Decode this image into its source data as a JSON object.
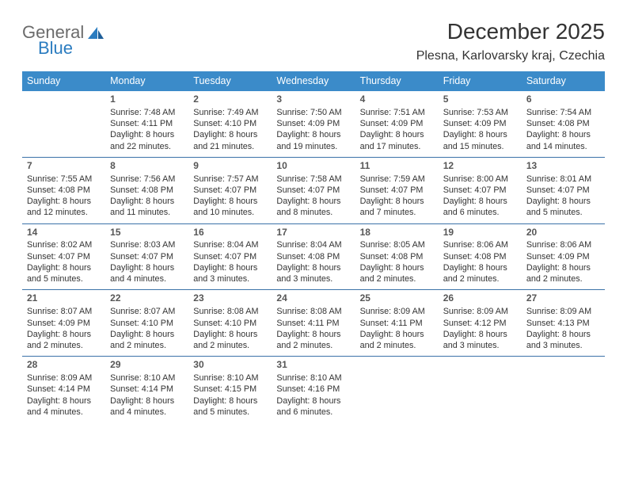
{
  "brand": {
    "word1": "General",
    "word2": "Blue",
    "name_color": "#2b7cc0",
    "icon_color": "#2b7cc0"
  },
  "title": "December 2025",
  "location": "Plesna, Karlovarsky kraj, Czechia",
  "theme": {
    "header_bg": "#3b8bc9",
    "header_text": "#ffffff",
    "divider": "#3b72a8",
    "text": "#333333",
    "background": "#ffffff"
  },
  "day_names": [
    "Sunday",
    "Monday",
    "Tuesday",
    "Wednesday",
    "Thursday",
    "Friday",
    "Saturday"
  ],
  "weeks": [
    [
      {
        "n": "",
        "sr": "",
        "ss": "",
        "dl": ""
      },
      {
        "n": "1",
        "sr": "Sunrise: 7:48 AM",
        "ss": "Sunset: 4:11 PM",
        "dl": "Daylight: 8 hours and 22 minutes."
      },
      {
        "n": "2",
        "sr": "Sunrise: 7:49 AM",
        "ss": "Sunset: 4:10 PM",
        "dl": "Daylight: 8 hours and 21 minutes."
      },
      {
        "n": "3",
        "sr": "Sunrise: 7:50 AM",
        "ss": "Sunset: 4:09 PM",
        "dl": "Daylight: 8 hours and 19 minutes."
      },
      {
        "n": "4",
        "sr": "Sunrise: 7:51 AM",
        "ss": "Sunset: 4:09 PM",
        "dl": "Daylight: 8 hours and 17 minutes."
      },
      {
        "n": "5",
        "sr": "Sunrise: 7:53 AM",
        "ss": "Sunset: 4:09 PM",
        "dl": "Daylight: 8 hours and 15 minutes."
      },
      {
        "n": "6",
        "sr": "Sunrise: 7:54 AM",
        "ss": "Sunset: 4:08 PM",
        "dl": "Daylight: 8 hours and 14 minutes."
      }
    ],
    [
      {
        "n": "7",
        "sr": "Sunrise: 7:55 AM",
        "ss": "Sunset: 4:08 PM",
        "dl": "Daylight: 8 hours and 12 minutes."
      },
      {
        "n": "8",
        "sr": "Sunrise: 7:56 AM",
        "ss": "Sunset: 4:08 PM",
        "dl": "Daylight: 8 hours and 11 minutes."
      },
      {
        "n": "9",
        "sr": "Sunrise: 7:57 AM",
        "ss": "Sunset: 4:07 PM",
        "dl": "Daylight: 8 hours and 10 minutes."
      },
      {
        "n": "10",
        "sr": "Sunrise: 7:58 AM",
        "ss": "Sunset: 4:07 PM",
        "dl": "Daylight: 8 hours and 8 minutes."
      },
      {
        "n": "11",
        "sr": "Sunrise: 7:59 AM",
        "ss": "Sunset: 4:07 PM",
        "dl": "Daylight: 8 hours and 7 minutes."
      },
      {
        "n": "12",
        "sr": "Sunrise: 8:00 AM",
        "ss": "Sunset: 4:07 PM",
        "dl": "Daylight: 8 hours and 6 minutes."
      },
      {
        "n": "13",
        "sr": "Sunrise: 8:01 AM",
        "ss": "Sunset: 4:07 PM",
        "dl": "Daylight: 8 hours and 5 minutes."
      }
    ],
    [
      {
        "n": "14",
        "sr": "Sunrise: 8:02 AM",
        "ss": "Sunset: 4:07 PM",
        "dl": "Daylight: 8 hours and 5 minutes."
      },
      {
        "n": "15",
        "sr": "Sunrise: 8:03 AM",
        "ss": "Sunset: 4:07 PM",
        "dl": "Daylight: 8 hours and 4 minutes."
      },
      {
        "n": "16",
        "sr": "Sunrise: 8:04 AM",
        "ss": "Sunset: 4:07 PM",
        "dl": "Daylight: 8 hours and 3 minutes."
      },
      {
        "n": "17",
        "sr": "Sunrise: 8:04 AM",
        "ss": "Sunset: 4:08 PM",
        "dl": "Daylight: 8 hours and 3 minutes."
      },
      {
        "n": "18",
        "sr": "Sunrise: 8:05 AM",
        "ss": "Sunset: 4:08 PM",
        "dl": "Daylight: 8 hours and 2 minutes."
      },
      {
        "n": "19",
        "sr": "Sunrise: 8:06 AM",
        "ss": "Sunset: 4:08 PM",
        "dl": "Daylight: 8 hours and 2 minutes."
      },
      {
        "n": "20",
        "sr": "Sunrise: 8:06 AM",
        "ss": "Sunset: 4:09 PM",
        "dl": "Daylight: 8 hours and 2 minutes."
      }
    ],
    [
      {
        "n": "21",
        "sr": "Sunrise: 8:07 AM",
        "ss": "Sunset: 4:09 PM",
        "dl": "Daylight: 8 hours and 2 minutes."
      },
      {
        "n": "22",
        "sr": "Sunrise: 8:07 AM",
        "ss": "Sunset: 4:10 PM",
        "dl": "Daylight: 8 hours and 2 minutes."
      },
      {
        "n": "23",
        "sr": "Sunrise: 8:08 AM",
        "ss": "Sunset: 4:10 PM",
        "dl": "Daylight: 8 hours and 2 minutes."
      },
      {
        "n": "24",
        "sr": "Sunrise: 8:08 AM",
        "ss": "Sunset: 4:11 PM",
        "dl": "Daylight: 8 hours and 2 minutes."
      },
      {
        "n": "25",
        "sr": "Sunrise: 8:09 AM",
        "ss": "Sunset: 4:11 PM",
        "dl": "Daylight: 8 hours and 2 minutes."
      },
      {
        "n": "26",
        "sr": "Sunrise: 8:09 AM",
        "ss": "Sunset: 4:12 PM",
        "dl": "Daylight: 8 hours and 3 minutes."
      },
      {
        "n": "27",
        "sr": "Sunrise: 8:09 AM",
        "ss": "Sunset: 4:13 PM",
        "dl": "Daylight: 8 hours and 3 minutes."
      }
    ],
    [
      {
        "n": "28",
        "sr": "Sunrise: 8:09 AM",
        "ss": "Sunset: 4:14 PM",
        "dl": "Daylight: 8 hours and 4 minutes."
      },
      {
        "n": "29",
        "sr": "Sunrise: 8:10 AM",
        "ss": "Sunset: 4:14 PM",
        "dl": "Daylight: 8 hours and 4 minutes."
      },
      {
        "n": "30",
        "sr": "Sunrise: 8:10 AM",
        "ss": "Sunset: 4:15 PM",
        "dl": "Daylight: 8 hours and 5 minutes."
      },
      {
        "n": "31",
        "sr": "Sunrise: 8:10 AM",
        "ss": "Sunset: 4:16 PM",
        "dl": "Daylight: 8 hours and 6 minutes."
      },
      {
        "n": "",
        "sr": "",
        "ss": "",
        "dl": ""
      },
      {
        "n": "",
        "sr": "",
        "ss": "",
        "dl": ""
      },
      {
        "n": "",
        "sr": "",
        "ss": "",
        "dl": ""
      }
    ]
  ]
}
